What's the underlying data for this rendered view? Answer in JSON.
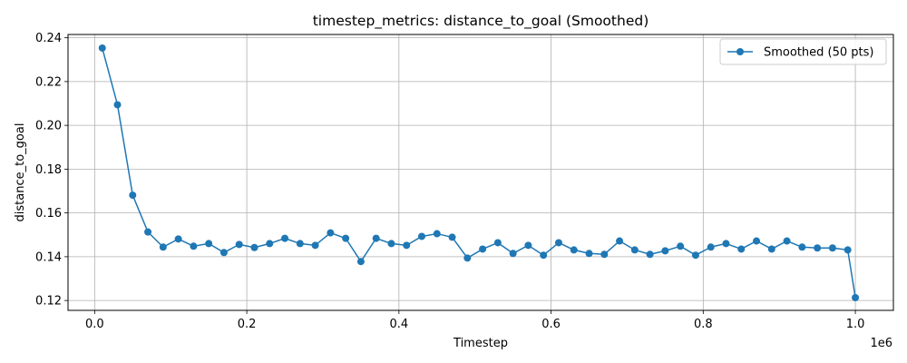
{
  "chart_data": {
    "type": "line",
    "title": "timestep_metrics: distance_to_goal (Smoothed)",
    "xlabel": "Timestep",
    "ylabel": "distance_to_goal",
    "x_offset_label": "1e6",
    "xlim": [
      -0.035,
      1.05
    ],
    "ylim": [
      0.1155,
      0.2415
    ],
    "x_ticks": [
      0.0,
      0.2,
      0.4,
      0.6,
      0.8,
      1.0
    ],
    "x_tick_labels": [
      "0.0",
      "0.2",
      "0.4",
      "0.6",
      "0.8",
      "1.0"
    ],
    "y_ticks": [
      0.12,
      0.14,
      0.16,
      0.18,
      0.2,
      0.22,
      0.24
    ],
    "y_tick_labels": [
      "0.12",
      "0.14",
      "0.16",
      "0.18",
      "0.20",
      "0.22",
      "0.24"
    ],
    "grid": true,
    "legend_position": "top-right",
    "color": "#1f77b4",
    "series": [
      {
        "name": "Smoothed (50 pts)",
        "x": [
          0.01,
          0.03,
          0.05,
          0.07,
          0.09,
          0.11,
          0.13,
          0.15,
          0.17,
          0.19,
          0.21,
          0.23,
          0.25,
          0.27,
          0.29,
          0.31,
          0.33,
          0.35,
          0.37,
          0.39,
          0.41,
          0.43,
          0.45,
          0.47,
          0.49,
          0.51,
          0.53,
          0.55,
          0.57,
          0.59,
          0.61,
          0.63,
          0.65,
          0.67,
          0.69,
          0.71,
          0.73,
          0.75,
          0.77,
          0.79,
          0.81,
          0.83,
          0.85,
          0.87,
          0.89,
          0.91,
          0.93,
          0.95,
          0.97,
          0.99,
          1.0
        ],
        "y": [
          0.2353,
          0.2094,
          0.1681,
          0.1513,
          0.1444,
          0.1481,
          0.1448,
          0.146,
          0.1419,
          0.1456,
          0.1442,
          0.146,
          0.1484,
          0.146,
          0.1452,
          0.1509,
          0.1484,
          0.1378,
          0.1484,
          0.146,
          0.1452,
          0.1493,
          0.1505,
          0.1489,
          0.1394,
          0.1435,
          0.1464,
          0.1415,
          0.1452,
          0.1407,
          0.1464,
          0.1431,
          0.1415,
          0.1411,
          0.1472,
          0.1431,
          0.1411,
          0.1427,
          0.1448,
          0.1407,
          0.1444,
          0.146,
          0.1435,
          0.1472,
          0.1435,
          0.1472,
          0.1444,
          0.144,
          0.144,
          0.1431,
          0.1213
        ]
      }
    ]
  }
}
